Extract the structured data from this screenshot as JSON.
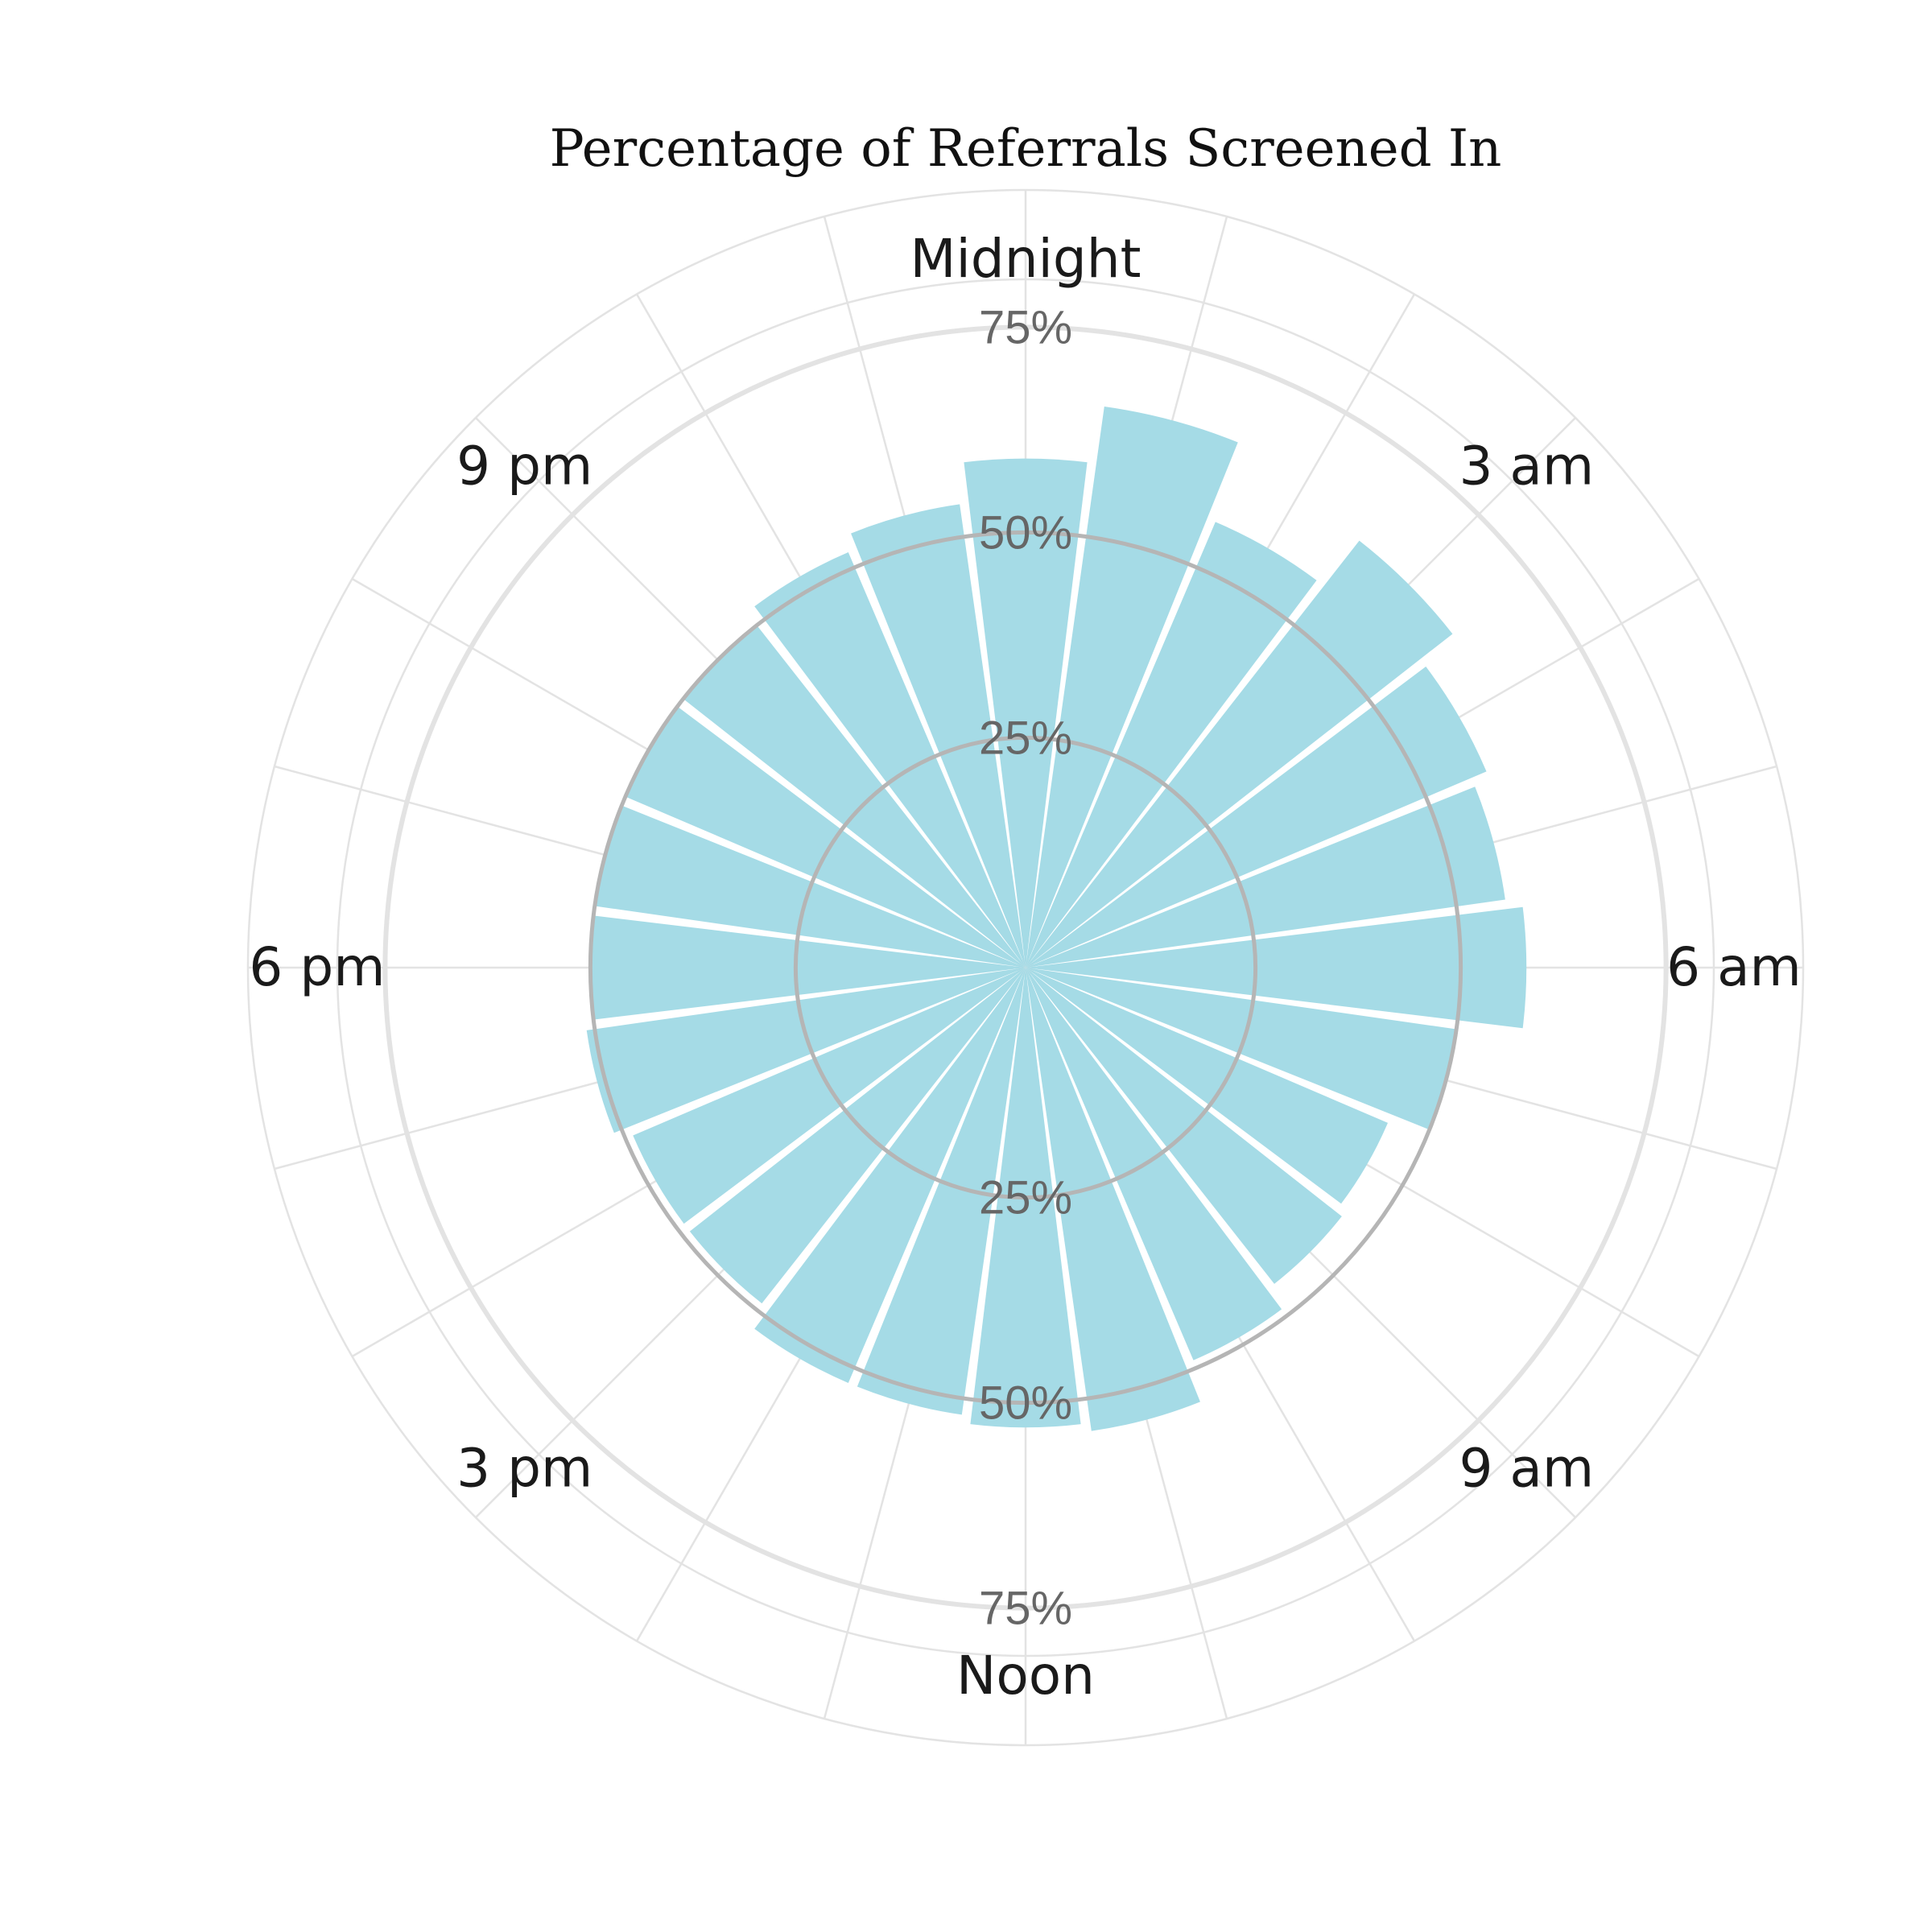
{
  "chart_data": {
    "type": "bar",
    "coordinate_system": "polar",
    "title": "Percentage of Referrals Screened In",
    "bar_color": "#a5dbe6",
    "grid_color": "#e3e3e3",
    "reference_ring_color": "#b5b5b5",
    "categories": [
      "0",
      "1",
      "2",
      "3",
      "4",
      "5",
      "6",
      "7",
      "8",
      "9",
      "10",
      "11",
      "12",
      "13",
      "14",
      "15",
      "16",
      "17",
      "18",
      "19",
      "20",
      "21",
      "22",
      "23"
    ],
    "values": [
      59,
      66,
      56,
      63,
      58,
      56,
      58,
      50,
      45,
      46,
      49,
      54,
      53,
      52,
      52,
      49,
      49,
      51,
      50,
      50,
      50,
      50,
      52,
      54
    ],
    "ylim": [
      0,
      100
    ],
    "visual_offset_pct": 3,
    "radial_ticks": [
      25,
      50,
      75
    ],
    "radial_tick_labels": [
      "25%",
      "50%",
      "75%"
    ],
    "reference_rings": [
      25,
      50
    ],
    "angular_labels": [
      {
        "hour": 0,
        "label": "Midnight"
      },
      {
        "hour": 3,
        "label": "3 am"
      },
      {
        "hour": 6,
        "label": "6 am"
      },
      {
        "hour": 9,
        "label": "9 am"
      },
      {
        "hour": 12,
        "label": "Noon"
      },
      {
        "hour": 15,
        "label": "3 pm"
      },
      {
        "hour": 18,
        "label": "6 pm"
      },
      {
        "hour": 21,
        "label": "9 pm"
      }
    ],
    "grid": true
  }
}
